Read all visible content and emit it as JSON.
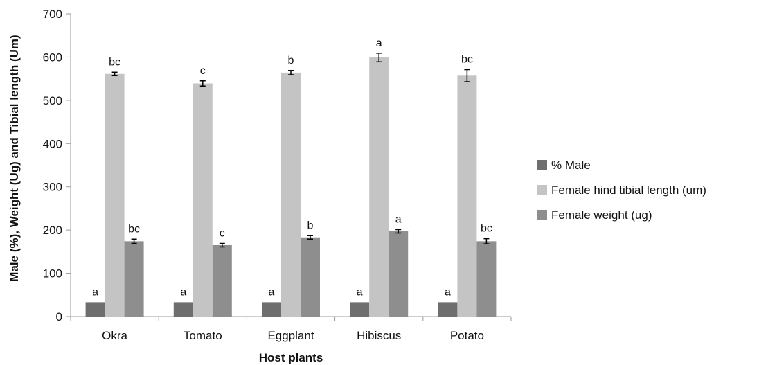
{
  "chart_data": {
    "type": "bar",
    "title": "",
    "xlabel": "Host plants",
    "ylabel": "Male (%), Weight (Ug) and Tibial length (Um)",
    "ylim": [
      0,
      700
    ],
    "yticks": [
      0,
      100,
      200,
      300,
      400,
      500,
      600,
      700
    ],
    "categories": [
      "Okra",
      "Tomato",
      "Eggplant",
      "Hibiscus",
      "Potato"
    ],
    "grid": false,
    "legend_position": "right",
    "series": [
      {
        "name": "% Male",
        "color": "#6e6e6e",
        "values": [
          33,
          33,
          33,
          33,
          33
        ],
        "errors": [
          0,
          0,
          0,
          0,
          0
        ],
        "labels": [
          "a",
          "a",
          "a",
          "a",
          "a"
        ]
      },
      {
        "name": "Female hind tibial length (um)",
        "color": "#c4c4c4",
        "values": [
          561,
          539,
          564,
          599,
          557
        ],
        "errors": [
          4,
          6,
          5,
          10,
          14
        ],
        "labels": [
          "bc",
          "c",
          "b",
          "a",
          "bc"
        ]
      },
      {
        "name": "Female weight (ug)",
        "color": "#8e8e8e",
        "values": [
          174,
          165,
          183,
          197,
          174
        ],
        "errors": [
          5,
          4,
          4,
          4,
          6
        ],
        "labels": [
          "bc",
          "c",
          "b",
          "a",
          "bc"
        ]
      }
    ]
  }
}
